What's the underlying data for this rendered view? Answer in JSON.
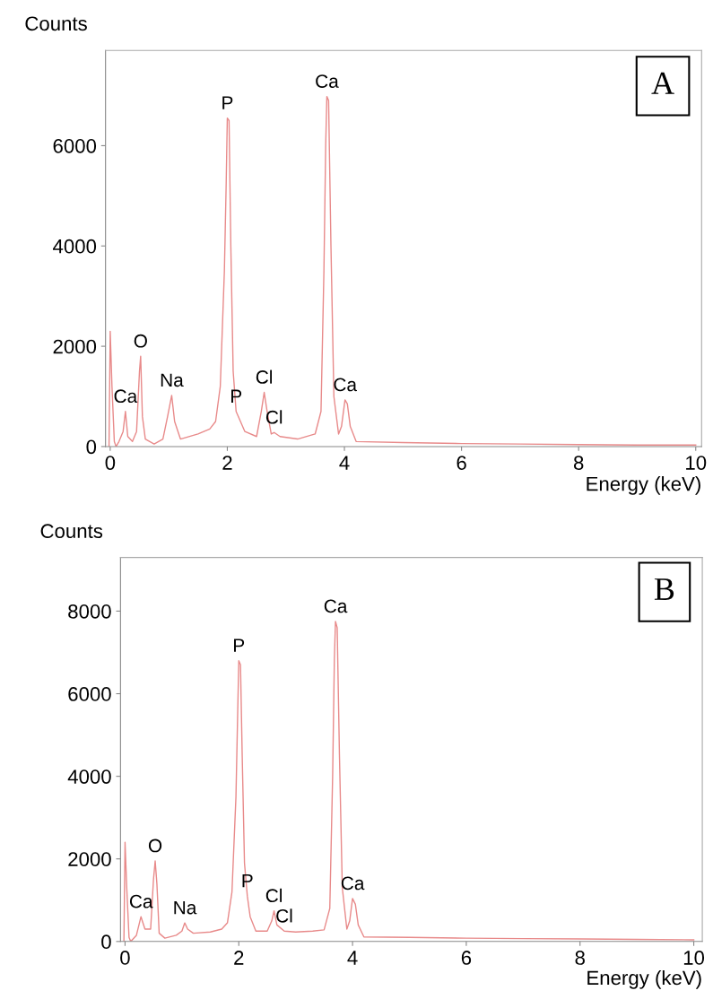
{
  "chart_data": [
    {
      "type": "line",
      "ylabel": "Counts",
      "xlabel": "Energy (keV)",
      "xlim": [
        -0.08,
        10.1
      ],
      "ylim": [
        0,
        7900
      ],
      "xticks": [
        0,
        2,
        4,
        6,
        8,
        10
      ],
      "yticks": [
        0,
        2000,
        4000,
        6000
      ],
      "grid": false,
      "legend": false,
      "marker": "none",
      "line_style": "solid",
      "annotations": [
        "A",
        {
          "text": "Ca",
          "x": 0.26,
          "y": 700
        },
        {
          "text": "O",
          "x": 0.52,
          "y": 1800
        },
        {
          "text": "Na",
          "x": 1.05,
          "y": 1020
        },
        {
          "text": "P",
          "x": 2.0,
          "y": 6550
        },
        {
          "text": "P",
          "x": 2.15,
          "y": 700
        },
        {
          "text": "Cl",
          "x": 2.63,
          "y": 1080
        },
        {
          "text": "Cl",
          "x": 2.8,
          "y": 280
        },
        {
          "text": "Ca",
          "x": 3.7,
          "y": 6980
        },
        {
          "text": "Ca",
          "x": 4.01,
          "y": 930
        }
      ],
      "series": [
        {
          "color": "#e88a8a",
          "x": [
            -0.02,
            0.0,
            0.03,
            0.07,
            0.1,
            0.15,
            0.22,
            0.26,
            0.3,
            0.38,
            0.45,
            0.5,
            0.52,
            0.55,
            0.6,
            0.75,
            0.9,
            0.98,
            1.05,
            1.1,
            1.2,
            1.5,
            1.7,
            1.8,
            1.88,
            1.95,
            1.98,
            2.0,
            2.03,
            2.06,
            2.1,
            2.15,
            2.3,
            2.5,
            2.58,
            2.63,
            2.68,
            2.75,
            2.8,
            2.9,
            3.2,
            3.5,
            3.6,
            3.65,
            3.68,
            3.7,
            3.73,
            3.77,
            3.82,
            3.9,
            3.95,
            4.01,
            4.05,
            4.1,
            4.2,
            5,
            6,
            7,
            8,
            9,
            10
          ],
          "values": [
            0,
            2300,
            1200,
            100,
            0,
            100,
            300,
            700,
            200,
            100,
            300,
            1500,
            1800,
            600,
            150,
            50,
            150,
            600,
            1020,
            500,
            150,
            250,
            350,
            500,
            1200,
            3500,
            5200,
            6550,
            6500,
            4000,
            1500,
            700,
            300,
            200,
            700,
            1080,
            700,
            250,
            280,
            200,
            150,
            250,
            700,
            3500,
            6000,
            6980,
            6900,
            4000,
            1000,
            250,
            400,
            930,
            850,
            400,
            100,
            80,
            60,
            50,
            40,
            30,
            30
          ]
        }
      ]
    },
    {
      "type": "line",
      "ylabel": "Counts",
      "xlabel": "Energy (keV)",
      "xlim": [
        -0.08,
        10.15
      ],
      "ylim": [
        0,
        9300
      ],
      "xticks": [
        0,
        2,
        4,
        6,
        8,
        10
      ],
      "yticks": [
        0,
        2000,
        4000,
        6000,
        8000
      ],
      "grid": false,
      "legend": false,
      "marker": "none",
      "line_style": "solid",
      "annotations": [
        "B",
        {
          "text": "Ca",
          "x": 0.28,
          "y": 600
        },
        {
          "text": "O",
          "x": 0.53,
          "y": 1950
        },
        {
          "text": "Na",
          "x": 1.05,
          "y": 450
        },
        {
          "text": "P",
          "x": 2.0,
          "y": 6800
        },
        {
          "text": "P",
          "x": 2.15,
          "y": 1100
        },
        {
          "text": "Cl",
          "x": 2.62,
          "y": 740
        },
        {
          "text": "Cl",
          "x": 2.8,
          "y": 250
        },
        {
          "text": "Ca",
          "x": 3.7,
          "y": 7750
        },
        {
          "text": "Ca",
          "x": 4.0,
          "y": 1040
        }
      ],
      "series": [
        {
          "color": "#e88a8a",
          "x": [
            -0.02,
            0.0,
            0.03,
            0.07,
            0.1,
            0.2,
            0.28,
            0.35,
            0.45,
            0.5,
            0.53,
            0.56,
            0.6,
            0.7,
            0.9,
            1.0,
            1.05,
            1.1,
            1.2,
            1.5,
            1.7,
            1.8,
            1.88,
            1.95,
            1.98,
            2.0,
            2.03,
            2.06,
            2.1,
            2.15,
            2.2,
            2.3,
            2.5,
            2.58,
            2.62,
            2.67,
            2.8,
            3.0,
            3.3,
            3.5,
            3.6,
            3.65,
            3.68,
            3.7,
            3.73,
            3.77,
            3.82,
            3.9,
            3.95,
            4.0,
            4.05,
            4.1,
            4.2,
            5,
            6,
            7,
            8,
            9,
            10
          ],
          "values": [
            0,
            2400,
            1300,
            100,
            0,
            150,
            600,
            300,
            300,
            1500,
            1950,
            1400,
            200,
            80,
            150,
            250,
            450,
            300,
            200,
            230,
            300,
            450,
            1200,
            3500,
            5500,
            6800,
            6700,
            4500,
            1900,
            1100,
            600,
            250,
            250,
            500,
            740,
            400,
            250,
            230,
            250,
            280,
            800,
            4000,
            6800,
            7750,
            7600,
            4500,
            1300,
            300,
            500,
            1040,
            900,
            400,
            110,
            100,
            80,
            70,
            60,
            50,
            40
          ]
        }
      ]
    }
  ]
}
